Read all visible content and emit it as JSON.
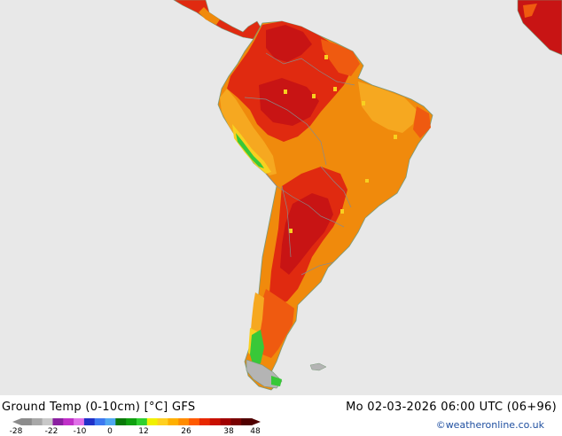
{
  "header": {
    "title": "Ground Temp (0-10cm) [°C] GFS",
    "valid_time": "Mo 02-03-2026 06:00 UTC (06+96)",
    "credit": "©weatheronline.co.uk"
  },
  "legend": {
    "ticks": [
      "-28",
      "-22",
      "-10",
      "0",
      "12",
      "26",
      "38",
      "48"
    ],
    "colors": [
      "#8c8c8c",
      "#a8a8a8",
      "#c8c8c8",
      "#8a1fa0",
      "#c030c8",
      "#e070e8",
      "#2030c8",
      "#3c78f0",
      "#50a8f0",
      "#0a7a0a",
      "#10a010",
      "#30d030",
      "#f0f000",
      "#ffd020",
      "#ffb000",
      "#ff8c00",
      "#ff5a00",
      "#e82800",
      "#c81000",
      "#a00000",
      "#780000",
      "#500000"
    ]
  },
  "map": {
    "ocean_color": "#e8e8e8",
    "land_palette": {
      "dark_red": "#c81414",
      "red": "#e02a10",
      "orange_red": "#ef5a10",
      "orange": "#f08a0c",
      "light_orange": "#f6a820",
      "yellow": "#f8d020",
      "green": "#38c838",
      "cold_grey": "#b4b4b4"
    }
  }
}
